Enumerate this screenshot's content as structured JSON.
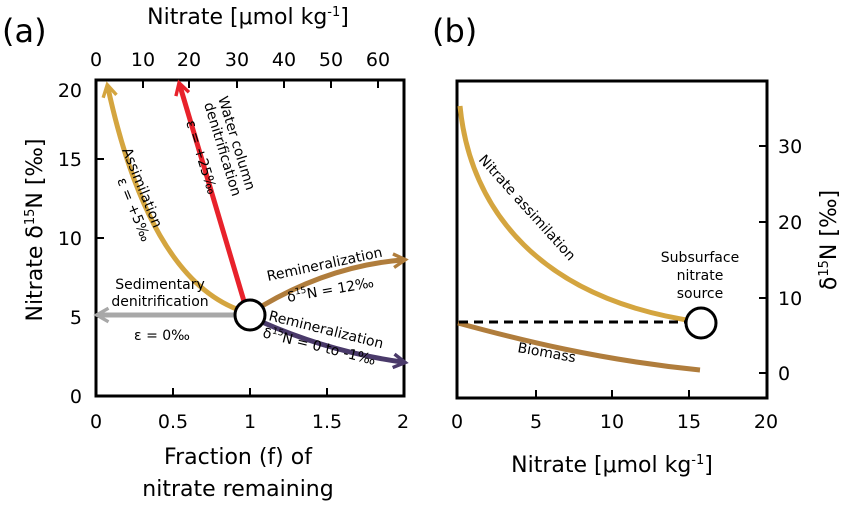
{
  "panel_a": {
    "label": "(a)",
    "top_axis_title": "Nitrate [μmol kg",
    "top_axis_sup": "-1",
    "top_axis_close": "]",
    "top_ticks": [
      "0",
      "10",
      "20",
      "30",
      "40",
      "50",
      "60"
    ],
    "y_axis_title": "Nitrate δ",
    "y_axis_sup": "15",
    "y_axis_rest": "N [‰]",
    "y_ticks": [
      "0",
      "5",
      "10",
      "15",
      "20"
    ],
    "x_ticks": [
      "0",
      "0.5",
      "1",
      "1.5",
      "2"
    ],
    "x_axis_title_line1": "Fraction (f) of",
    "x_axis_title_line2": "nitrate remaining",
    "arrows": {
      "assimilation": {
        "label": "Assimilation",
        "epsilon": "ε = +5‰",
        "color": "#d4a53f"
      },
      "water_column": {
        "label_line1": "Water column",
        "label_line2": "denitrification",
        "epsilon": "ε = +25‰",
        "color": "#e8222b"
      },
      "sedimentary": {
        "label_line1": "Sedimentary",
        "label_line2": "denitrification",
        "epsilon": "ε = 0‰",
        "color": "#a8a8a8"
      },
      "remin_up": {
        "label": "Remineralization",
        "delta": "δ",
        "sup": "15",
        "rest": "N = 12‰",
        "color": "#b07d3c"
      },
      "remin_down": {
        "label": "Remineralization",
        "delta": "δ",
        "sup": "15",
        "rest": "N = 0 to -1‰",
        "color": "#4a3a6a"
      }
    }
  },
  "panel_b": {
    "label": "(b)",
    "x_ticks": [
      "0",
      "5",
      "10",
      "15",
      "20"
    ],
    "y_ticks": [
      "0",
      "10",
      "20",
      "30"
    ],
    "x_axis_title": "Nitrate [μmol kg",
    "x_axis_sup": "-1",
    "x_axis_close": "]",
    "y_axis_title": "δ",
    "y_axis_sup": "15",
    "y_axis_rest": "N [‰]",
    "curve_labels": {
      "assimilation": "Nitrate assimilation",
      "biomass": "Biomass",
      "source_line1": "Subsurface",
      "source_line2": "nitrate",
      "source_line3": "source"
    },
    "colors": {
      "assimilation": "#d4a53f",
      "biomass": "#b07d3c"
    }
  }
}
